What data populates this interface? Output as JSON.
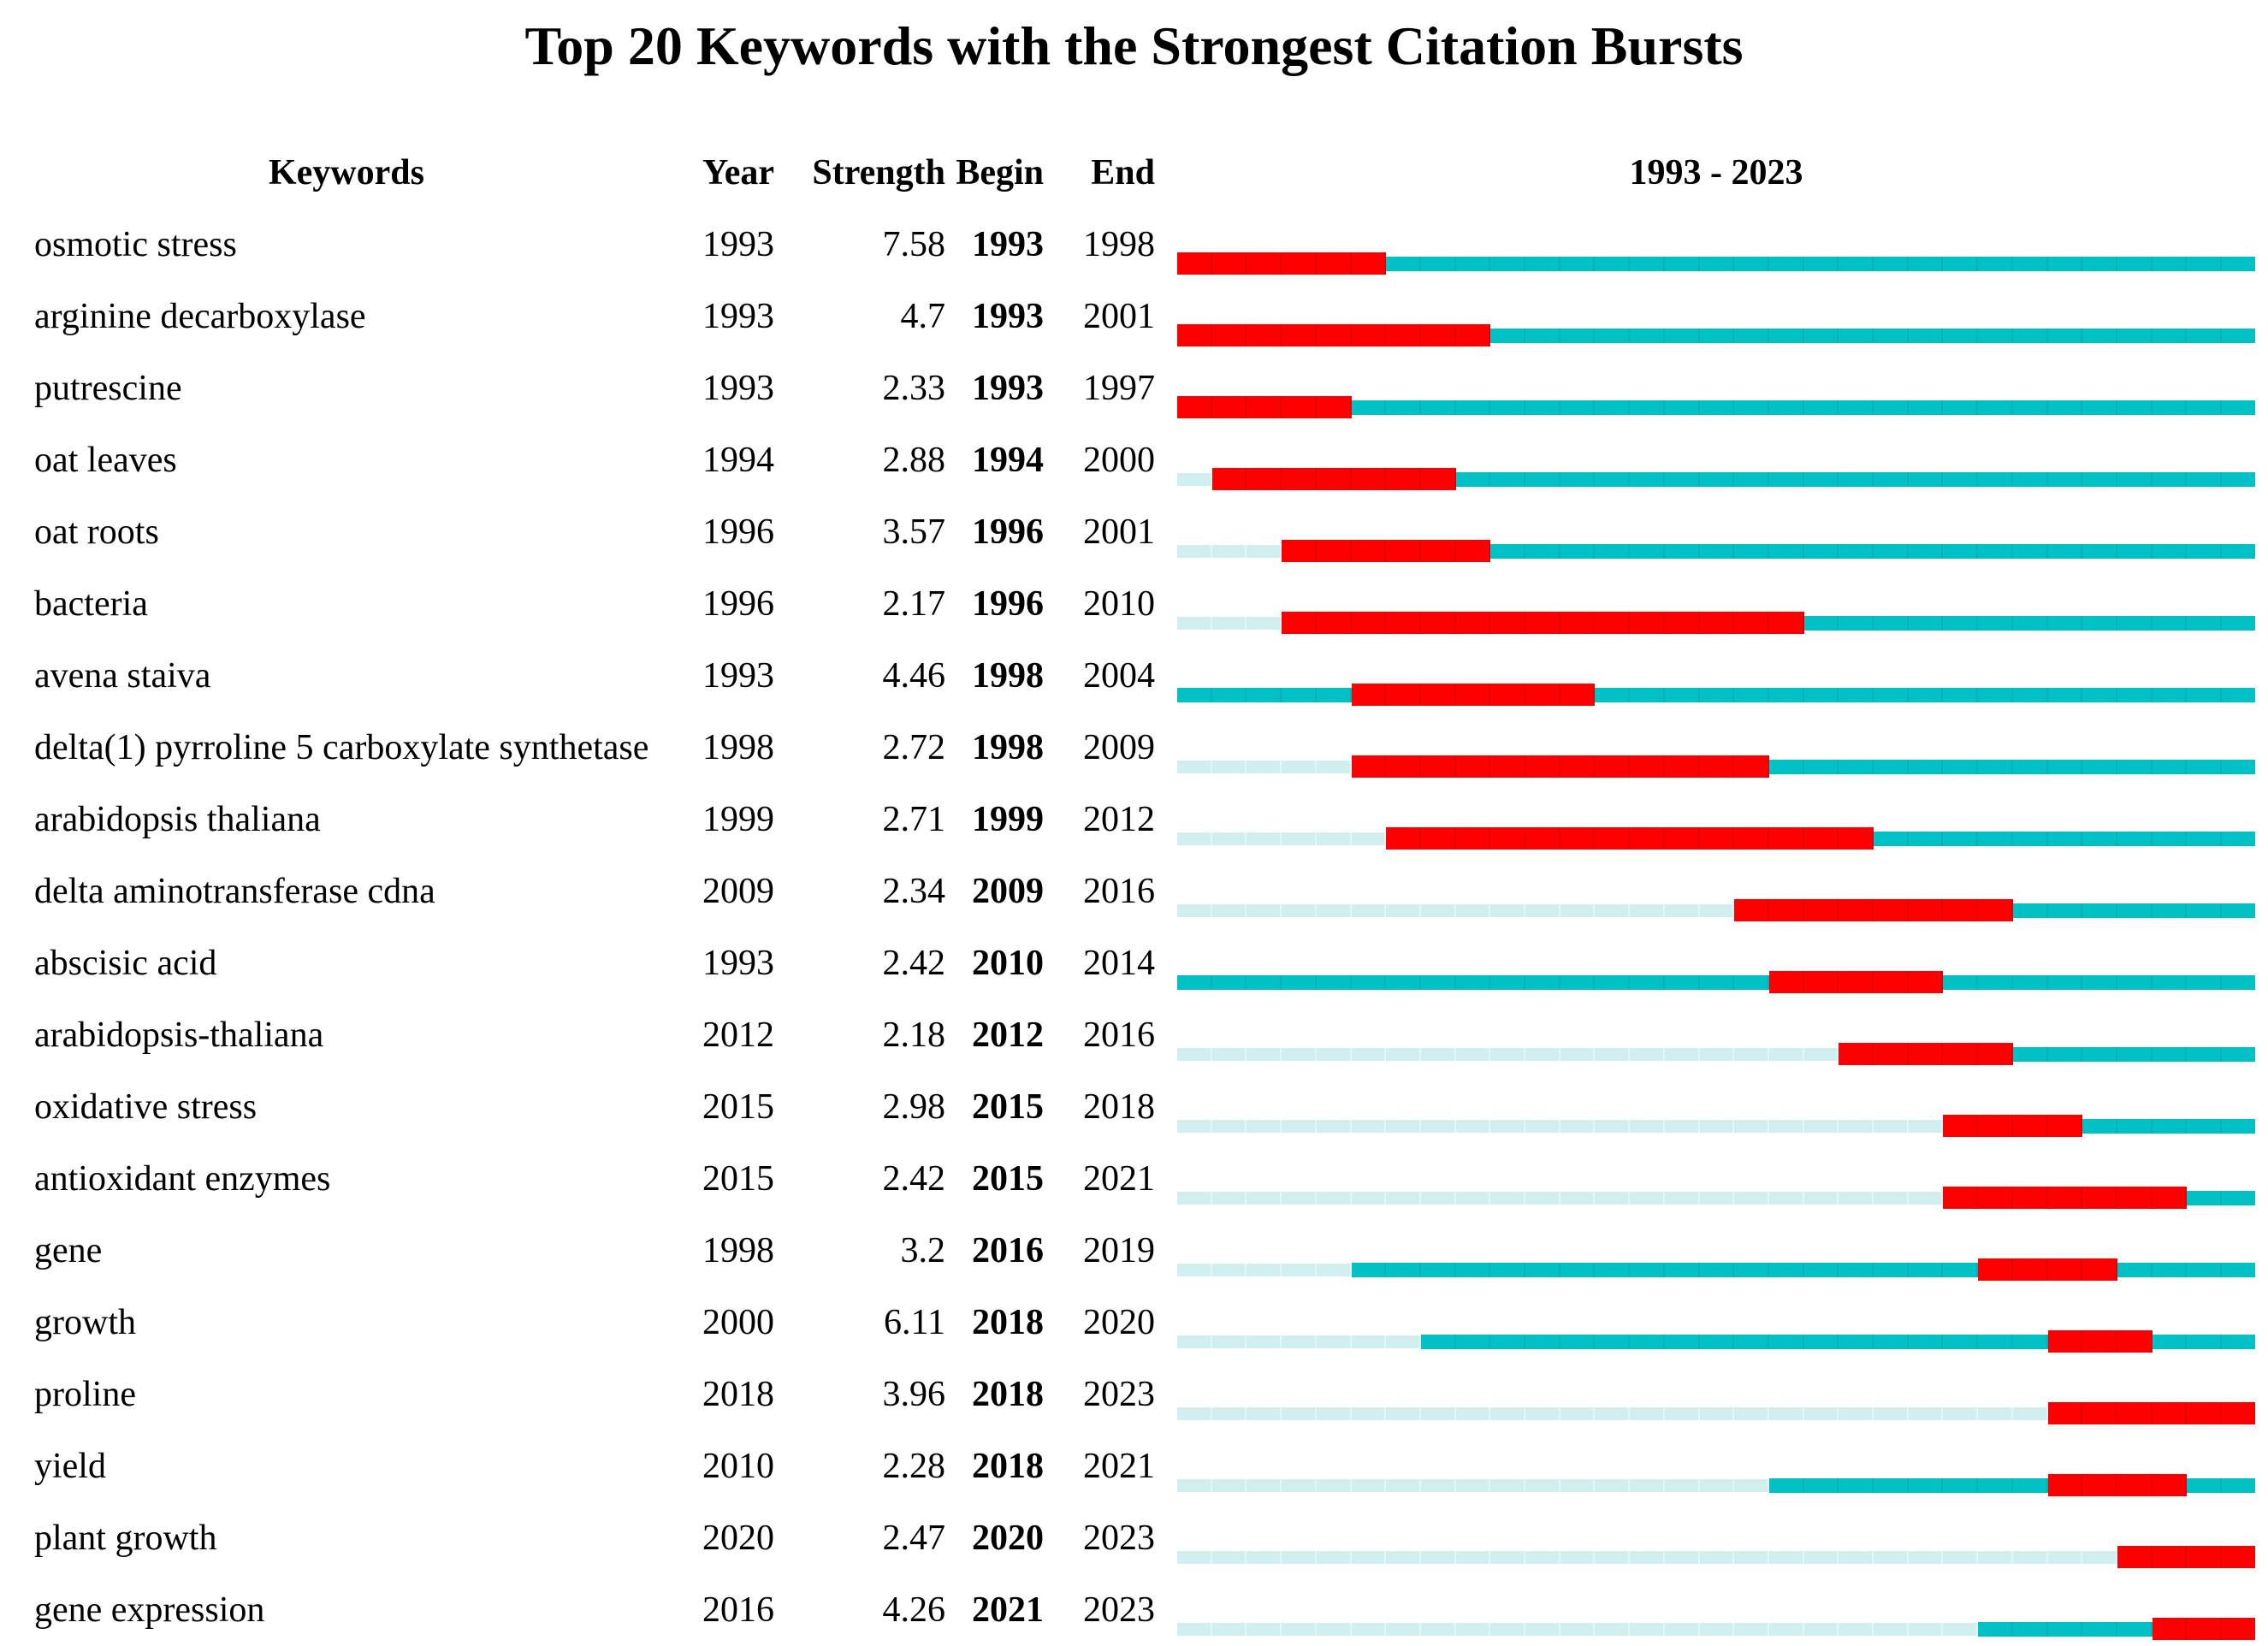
{
  "header": {
    "keywords": "Keywords",
    "year": "Year",
    "strength": "Strength",
    "begin": "Begin",
    "end": "End",
    "timeline": "1993 - 2023"
  },
  "colors": {
    "burst_red": "#ff0000",
    "active_teal": "#00c2c6",
    "inactive_pale": "#d2efef"
  },
  "chart_data": {
    "type": "table",
    "title": "Top 20 Keywords with the Strongest Citation Bursts",
    "columns": [
      "Keywords",
      "Year",
      "Strength",
      "Begin",
      "End",
      "1993 - 2023"
    ],
    "timeline_range": [
      1993,
      2023
    ],
    "timeline_label": "1993 - 2023",
    "bar_legend": {
      "burst": "burst period (red)",
      "active": "keyword active (teal)",
      "pre": "before first appearance (pale cyan)"
    },
    "rows": [
      {
        "keyword": "osmotic stress",
        "year": 1993,
        "strength": 7.58,
        "begin": 1993,
        "end": 1998
      },
      {
        "keyword": "arginine decarboxylase",
        "year": 1993,
        "strength": 4.7,
        "begin": 1993,
        "end": 2001
      },
      {
        "keyword": "putrescine",
        "year": 1993,
        "strength": 2.33,
        "begin": 1993,
        "end": 1997
      },
      {
        "keyword": "oat leaves",
        "year": 1994,
        "strength": 2.88,
        "begin": 1994,
        "end": 2000
      },
      {
        "keyword": "oat roots",
        "year": 1996,
        "strength": 3.57,
        "begin": 1996,
        "end": 2001
      },
      {
        "keyword": "bacteria",
        "year": 1996,
        "strength": 2.17,
        "begin": 1996,
        "end": 2010
      },
      {
        "keyword": "avena staiva",
        "year": 1993,
        "strength": 4.46,
        "begin": 1998,
        "end": 2004
      },
      {
        "keyword": "delta(1) pyrroline 5 carboxylate synthetase",
        "year": 1998,
        "strength": 2.72,
        "begin": 1998,
        "end": 2009
      },
      {
        "keyword": "arabidopsis thaliana",
        "year": 1999,
        "strength": 2.71,
        "begin": 1999,
        "end": 2012
      },
      {
        "keyword": "delta aminotransferase cdna",
        "year": 2009,
        "strength": 2.34,
        "begin": 2009,
        "end": 2016
      },
      {
        "keyword": "abscisic acid",
        "year": 1993,
        "strength": 2.42,
        "begin": 2010,
        "end": 2014
      },
      {
        "keyword": "arabidopsis-thaliana",
        "year": 2012,
        "strength": 2.18,
        "begin": 2012,
        "end": 2016
      },
      {
        "keyword": "oxidative stress",
        "year": 2015,
        "strength": 2.98,
        "begin": 2015,
        "end": 2018
      },
      {
        "keyword": "antioxidant enzymes",
        "year": 2015,
        "strength": 2.42,
        "begin": 2015,
        "end": 2021
      },
      {
        "keyword": "gene",
        "year": 1998,
        "strength": 3.2,
        "begin": 2016,
        "end": 2019
      },
      {
        "keyword": "growth",
        "year": 2000,
        "strength": 6.11,
        "begin": 2018,
        "end": 2020
      },
      {
        "keyword": "proline",
        "year": 2018,
        "strength": 3.96,
        "begin": 2018,
        "end": 2023
      },
      {
        "keyword": "yield",
        "year": 2010,
        "strength": 2.28,
        "begin": 2018,
        "end": 2021
      },
      {
        "keyword": "plant growth",
        "year": 2020,
        "strength": 2.47,
        "begin": 2020,
        "end": 2023
      },
      {
        "keyword": "gene expression",
        "year": 2016,
        "strength": 4.26,
        "begin": 2021,
        "end": 2023
      }
    ]
  }
}
